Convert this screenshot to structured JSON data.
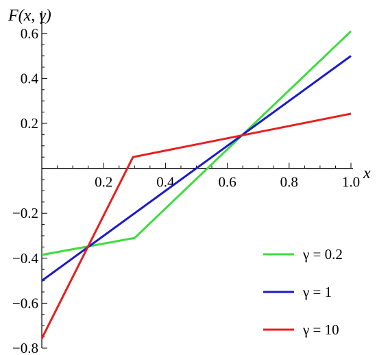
{
  "chart_data": {
    "type": "line",
    "title": "",
    "xlabel": "x",
    "ylabel": "F(x, γ)",
    "xlim": [
      0,
      1.0
    ],
    "ylim": [
      -0.8,
      0.7
    ],
    "x_ticks": [
      0.2,
      0.4,
      0.6,
      0.8,
      1.0
    ],
    "x_tick_labels": [
      "0.2",
      "0.4",
      "0.6",
      "0.8",
      "1.0"
    ],
    "y_ticks": [
      -0.8,
      -0.6,
      -0.4,
      -0.2,
      0.2,
      0.4,
      0.6
    ],
    "y_tick_labels": [
      "−0.8",
      "−0.6",
      "−0.4",
      "−0.2",
      "0.2",
      "0.4",
      "0.6"
    ],
    "grid": false,
    "legend_position": "bottom-right",
    "series": [
      {
        "name": "γ = 0.2",
        "color": "#3ddc3d",
        "points": [
          [
            0,
            -0.385
          ],
          [
            0.3,
            -0.31
          ],
          [
            1.0,
            0.61
          ]
        ]
      },
      {
        "name": "γ = 1",
        "color": "#1a1acc",
        "points": [
          [
            0,
            -0.5
          ],
          [
            1.0,
            0.5
          ]
        ]
      },
      {
        "name": "γ = 10",
        "color": "#e81e1e",
        "points": [
          [
            0,
            -0.757
          ],
          [
            0.295,
            0.05
          ],
          [
            1.0,
            0.243
          ]
        ]
      }
    ]
  }
}
